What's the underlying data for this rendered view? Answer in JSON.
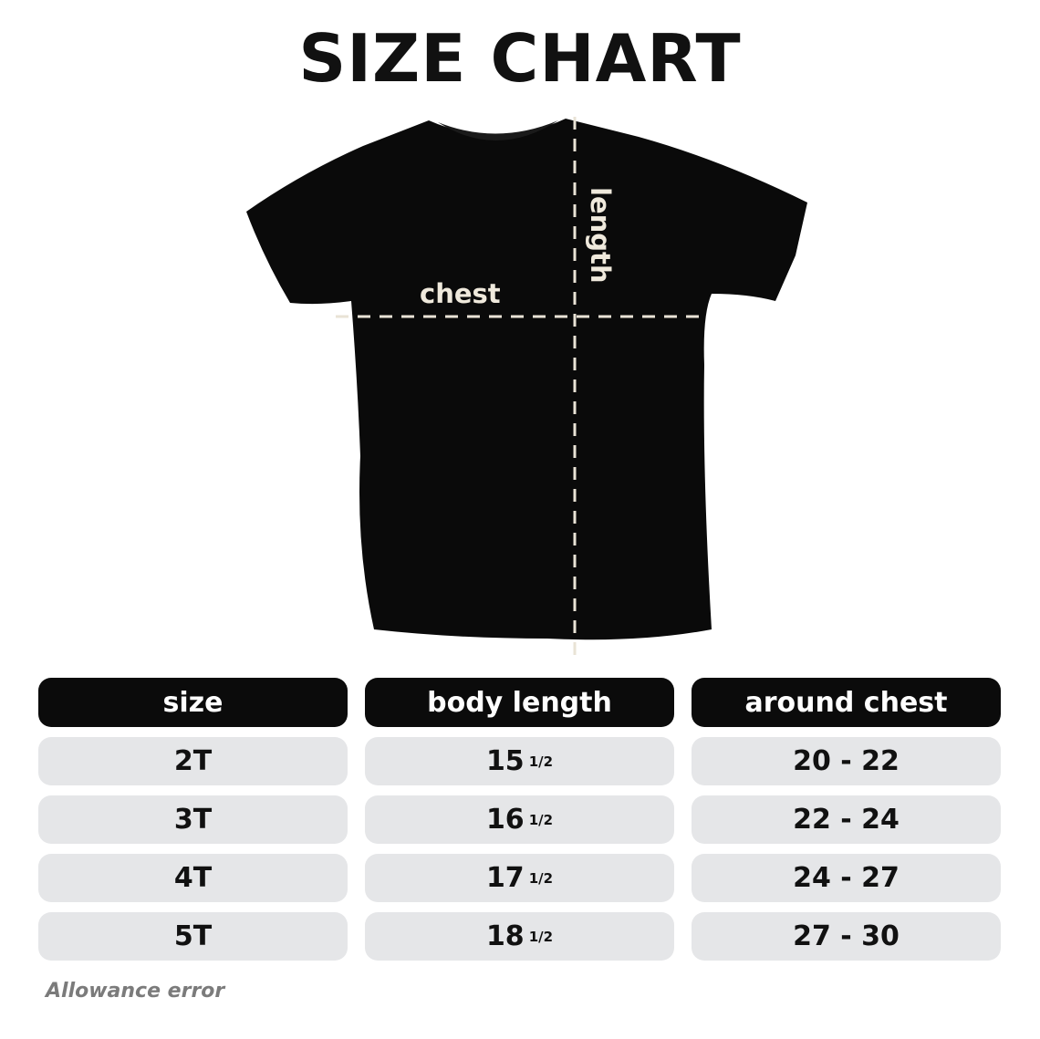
{
  "title": "SIZE CHART",
  "diagram": {
    "chest_label": "chest",
    "length_label": "length",
    "shirt_color": "#0a0a0a",
    "dash_color": "#e9e3d6"
  },
  "table": {
    "headers": [
      "size",
      "body length",
      "around chest"
    ],
    "rows": [
      {
        "size": "2T",
        "length": "15",
        "length_frac": "1/2",
        "chest": "20 - 22"
      },
      {
        "size": "3T",
        "length": "16",
        "length_frac": "1/2",
        "chest": "22 - 24"
      },
      {
        "size": "4T",
        "length": "17",
        "length_frac": "1/2",
        "chest": "24 - 27"
      },
      {
        "size": "5T",
        "length": "18",
        "length_frac": "1/2",
        "chest": "27 - 30"
      }
    ]
  },
  "footnote": "Allowance error"
}
